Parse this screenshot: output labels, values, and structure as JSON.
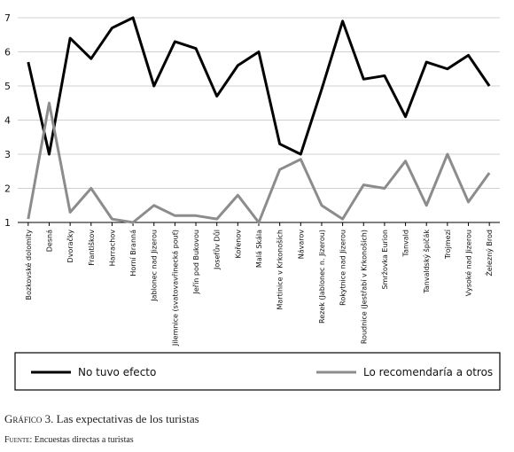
{
  "chart_data": {
    "type": "line",
    "categories": [
      "Bozkovské dolomity",
      "Desná",
      "Dvoračky",
      "Františkov",
      "Harrachov",
      "Horní Branná",
      "Jablonec nad Jizerou",
      "Jilemnice (svatovavřinecká pouť)",
      "Jeřín pod Bukovou",
      "Josefův Důl",
      "Kořenov",
      "Malá Skála",
      "Martinice v Krkonoších",
      "Návarov",
      "Rezek (Jablonec n. Jizerou)",
      "Rokytnice nad Jizerou",
      "Roudnice (Jestřabí v Krkonoších)",
      "Smržovka Eurion",
      "Tanvald",
      "Tanvaldský špičák",
      "Trojmezí",
      "Vysoké nad Jizerou",
      "Železný Brod"
    ],
    "series": [
      {
        "name": "No tuvo efecto",
        "color": "#000000",
        "values": [
          5.7,
          3.0,
          6.4,
          5.8,
          6.7,
          7.0,
          5.0,
          6.3,
          6.1,
          4.7,
          5.6,
          6.0,
          3.3,
          3.0,
          4.9,
          6.9,
          5.2,
          5.3,
          4.1,
          5.7,
          5.5,
          5.9,
          5.0
        ]
      },
      {
        "name": "Lo recomendaría a otros",
        "color": "#8c8c8c",
        "values": [
          1.1,
          4.5,
          1.3,
          2.0,
          1.1,
          1.0,
          1.5,
          1.2,
          1.2,
          1.1,
          1.8,
          1.0,
          2.55,
          2.85,
          1.5,
          1.1,
          2.1,
          2.0,
          2.8,
          1.5,
          3.0,
          1.6,
          2.45
        ]
      }
    ],
    "ylim": [
      1,
      7
    ],
    "yticks": [
      1,
      2,
      3,
      4,
      5,
      6,
      7
    ],
    "grid": true,
    "caption_label": "Gráfico 3.",
    "caption": "Las expectativas de los turistas",
    "source_label": "Fuente:",
    "source": "Encuestas directas a turistas"
  }
}
